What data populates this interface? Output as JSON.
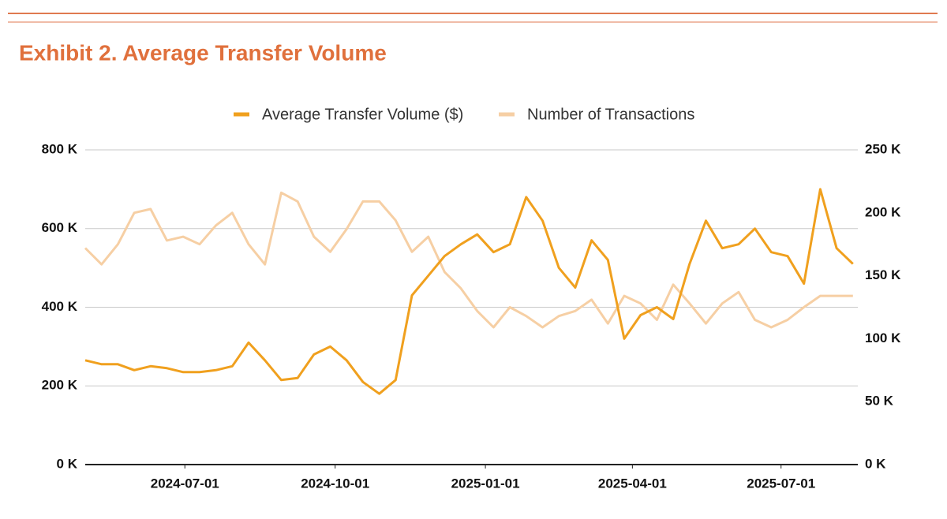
{
  "chart_data": {
    "type": "line",
    "title": "Exhibit 2. Average Transfer Volume",
    "x": [
      "2024-05-01",
      "2024-05-11",
      "2024-05-21",
      "2024-05-31",
      "2024-06-10",
      "2024-06-20",
      "2024-06-30",
      "2024-07-10",
      "2024-07-20",
      "2024-07-30",
      "2024-08-09",
      "2024-08-19",
      "2024-08-29",
      "2024-09-08",
      "2024-09-18",
      "2024-09-28",
      "2024-10-08",
      "2024-10-18",
      "2024-10-28",
      "2024-11-07",
      "2024-11-17",
      "2024-11-27",
      "2024-12-07",
      "2024-12-17",
      "2024-12-27",
      "2025-01-06",
      "2025-01-16",
      "2025-01-26",
      "2025-02-05",
      "2025-02-15",
      "2025-02-25",
      "2025-03-07",
      "2025-03-17",
      "2025-03-27",
      "2025-04-06",
      "2025-04-16",
      "2025-04-26",
      "2025-05-06",
      "2025-05-16",
      "2025-05-26",
      "2025-06-05",
      "2025-06-15",
      "2025-06-25",
      "2025-07-05",
      "2025-07-15",
      "2025-07-25",
      "2025-08-04",
      "2025-08-14"
    ],
    "series": [
      {
        "name": "Average Transfer Volume ($)",
        "color": "#f0a01e",
        "axis": "y",
        "values": [
          265000,
          255000,
          255000,
          240000,
          250000,
          245000,
          235000,
          235000,
          240000,
          250000,
          310000,
          265000,
          215000,
          220000,
          280000,
          300000,
          265000,
          210000,
          180000,
          215000,
          430000,
          480000,
          530000,
          560000,
          585000,
          540000,
          560000,
          680000,
          620000,
          500000,
          450000,
          570000,
          520000,
          320000,
          380000,
          400000,
          370000,
          510000,
          620000,
          550000,
          560000,
          600000,
          540000,
          530000,
          460000,
          700000,
          550000,
          510000
        ]
      },
      {
        "name": "Number of Transactions",
        "color": "#f6cfa4",
        "axis": "y2",
        "values": [
          172000,
          159000,
          175000,
          200000,
          203000,
          178000,
          181000,
          175000,
          190000,
          200000,
          175000,
          159000,
          216000,
          209000,
          181000,
          169000,
          187000,
          209000,
          209000,
          194000,
          169000,
          181000,
          153000,
          140000,
          122000,
          109000,
          125000,
          118000,
          109000,
          118000,
          122000,
          131000,
          112000,
          134000,
          128000,
          115000,
          143000,
          128000,
          112000,
          128000,
          137000,
          115000,
          109000,
          115000,
          125000,
          134000,
          134000,
          134000
        ]
      }
    ],
    "xlim": [
      "2024-05-01",
      "2025-08-17"
    ],
    "xticks": [
      "2024-07-01",
      "2024-10-01",
      "2025-01-01",
      "2025-04-01",
      "2025-07-01"
    ],
    "ylim": [
      0,
      800000
    ],
    "yticks": [
      {
        "value": 0,
        "label": "0 K"
      },
      {
        "value": 200000,
        "label": "200 K"
      },
      {
        "value": 400000,
        "label": "400 K"
      },
      {
        "value": 600000,
        "label": "600 K"
      },
      {
        "value": 800000,
        "label": "800 K"
      }
    ],
    "y2lim": [
      0,
      250000
    ],
    "y2ticks": [
      {
        "value": 0,
        "label": "0 K"
      },
      {
        "value": 50000,
        "label": "50 K"
      },
      {
        "value": 100000,
        "label": "100 K"
      },
      {
        "value": 150000,
        "label": "150 K"
      },
      {
        "value": 200000,
        "label": "200 K"
      },
      {
        "value": 250000,
        "label": "250 K"
      }
    ],
    "grid": true,
    "legend": "top"
  }
}
